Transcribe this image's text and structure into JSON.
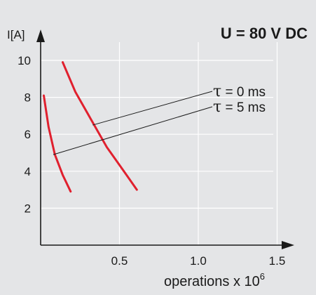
{
  "chart_data": {
    "type": "line",
    "title": "U = 80 V DC",
    "ylabel": "I[A]",
    "xlabel": "operations x 10",
    "xlabel_exponent": "6",
    "xlim": [
      0,
      1.7
    ],
    "ylim": [
      0,
      11
    ],
    "x_ticks": [
      "0.5",
      "1.0",
      "1.5"
    ],
    "y_ticks": [
      "2",
      "4",
      "6",
      "8",
      "10"
    ],
    "x_tick_values": [
      0.5,
      1.0,
      1.5
    ],
    "y_tick_values": [
      2,
      4,
      6,
      8,
      10
    ],
    "grid": true,
    "series_color": "#e0202e",
    "series": [
      {
        "name": "τ = 0 ms",
        "label_symbol": "τ",
        "label_text": " = 0 ms",
        "leader_point": [
          0.33,
          6.5
        ],
        "x": [
          0.14,
          0.22,
          0.32,
          0.42,
          0.52,
          0.61
        ],
        "y": [
          9.9,
          8.3,
          6.8,
          5.3,
          4.1,
          3.0
        ]
      },
      {
        "name": "τ = 5 ms",
        "label_symbol": "τ",
        "label_text": " = 5 ms",
        "leader_point": [
          0.08,
          4.9
        ],
        "x": [
          0.02,
          0.05,
          0.09,
          0.14,
          0.19
        ],
        "y": [
          8.1,
          6.4,
          4.9,
          3.8,
          2.9
        ]
      }
    ]
  }
}
